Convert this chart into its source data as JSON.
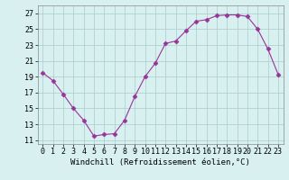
{
  "x": [
    0,
    1,
    2,
    3,
    4,
    5,
    6,
    7,
    8,
    9,
    10,
    11,
    12,
    13,
    14,
    15,
    16,
    17,
    18,
    19,
    20,
    21,
    22,
    23
  ],
  "y": [
    19.5,
    18.5,
    16.8,
    15.0,
    13.5,
    11.5,
    11.7,
    11.8,
    13.5,
    16.5,
    19.0,
    20.7,
    23.2,
    23.5,
    24.8,
    26.0,
    26.2,
    26.7,
    26.8,
    26.8,
    26.6,
    25.0,
    22.5,
    19.3
  ],
  "line_color": "#993399",
  "marker": "D",
  "marker_size": 2.5,
  "bg_color": "#d8f0f0",
  "grid_color": "#aacccc",
  "xlabel": "Windchill (Refroidissement éolien,°C)",
  "xlabel_fontsize": 6.5,
  "tick_fontsize": 6,
  "yticks": [
    11,
    13,
    15,
    17,
    19,
    21,
    23,
    25,
    27
  ],
  "xticks": [
    0,
    1,
    2,
    3,
    4,
    5,
    6,
    7,
    8,
    9,
    10,
    11,
    12,
    13,
    14,
    15,
    16,
    17,
    18,
    19,
    20,
    21,
    22,
    23
  ],
  "ylim": [
    10.5,
    28.0
  ],
  "xlim": [
    -0.5,
    23.5
  ]
}
